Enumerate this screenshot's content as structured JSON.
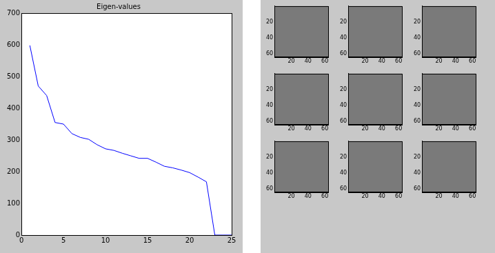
{
  "chart_data": [
    {
      "type": "line",
      "title": "Eigen-values",
      "x": [
        1,
        2,
        3,
        4,
        5,
        6,
        7,
        8,
        9,
        10,
        11,
        12,
        13,
        14,
        15,
        16,
        17,
        18,
        19,
        20,
        21,
        22,
        23,
        24,
        25
      ],
      "values": [
        598,
        470,
        440,
        355,
        350,
        320,
        308,
        302,
        285,
        272,
        267,
        258,
        250,
        242,
        242,
        230,
        217,
        212,
        205,
        197,
        183,
        168,
        0,
        0,
        0
      ],
      "color": "#0000ff",
      "xlim": [
        0,
        25
      ],
      "xticks": [
        0,
        5,
        10,
        15,
        20,
        25
      ],
      "ylim": [
        0,
        700
      ],
      "yticks": [
        0,
        100,
        200,
        300,
        400,
        500,
        600,
        700
      ],
      "grid": false
    },
    {
      "type": "image",
      "xlim": [
        0,
        64
      ],
      "xticks": [
        20,
        40,
        60
      ],
      "ylim": [
        0,
        64
      ],
      "yticks": [
        20,
        40,
        60
      ]
    },
    {
      "type": "image",
      "xlim": [
        0,
        64
      ],
      "xticks": [
        20,
        40,
        60
      ],
      "ylim": [
        0,
        64
      ],
      "yticks": [
        20,
        40,
        60
      ]
    },
    {
      "type": "image",
      "xlim": [
        0,
        64
      ],
      "xticks": [
        20,
        40,
        60
      ],
      "ylim": [
        0,
        64
      ],
      "yticks": [
        20,
        40,
        60
      ]
    },
    {
      "type": "image",
      "xlim": [
        0,
        64
      ],
      "xticks": [
        20,
        40,
        60
      ],
      "ylim": [
        0,
        64
      ],
      "yticks": [
        20,
        40,
        60
      ]
    },
    {
      "type": "image",
      "xlim": [
        0,
        64
      ],
      "xticks": [
        20,
        40,
        60
      ],
      "ylim": [
        0,
        64
      ],
      "yticks": [
        20,
        40,
        60
      ]
    },
    {
      "type": "image",
      "xlim": [
        0,
        64
      ],
      "xticks": [
        20,
        40,
        60
      ],
      "ylim": [
        0,
        64
      ],
      "yticks": [
        20,
        40,
        60
      ]
    },
    {
      "type": "image",
      "xlim": [
        0,
        64
      ],
      "xticks": [
        20,
        40,
        60
      ],
      "ylim": [
        0,
        64
      ],
      "yticks": [
        20,
        40,
        60
      ]
    },
    {
      "type": "image",
      "xlim": [
        0,
        64
      ],
      "xticks": [
        20,
        40,
        60
      ],
      "ylim": [
        0,
        64
      ],
      "yticks": [
        20,
        40,
        60
      ]
    },
    {
      "type": "image",
      "xlim": [
        0,
        64
      ],
      "xticks": [
        20,
        40,
        60
      ],
      "ylim": [
        0,
        64
      ],
      "yticks": [
        20,
        40,
        60
      ]
    }
  ]
}
